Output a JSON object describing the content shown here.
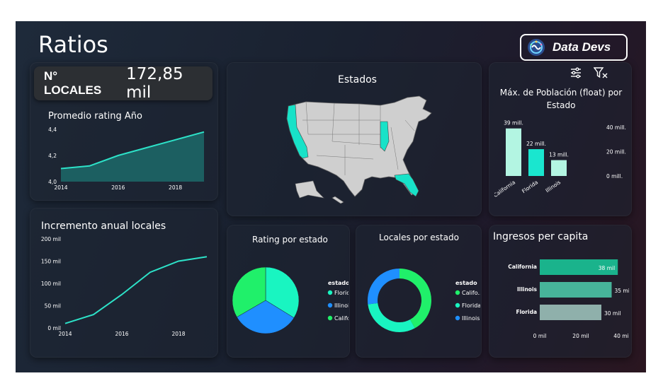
{
  "header": {
    "title": "Ratios",
    "brand": "Data Devs",
    "brand_logo_icon": "data-devs-logo-icon"
  },
  "kpi": {
    "label": "N° LOCALES",
    "value": "172,85 mil"
  },
  "toolbar": {
    "icons": [
      "filter-settings-icon",
      "clear-filter-icon"
    ]
  },
  "map": {
    "title": "Estados",
    "highlight_color": "#18e2c8",
    "base_color": "#cfcfcf",
    "highlighted_states": [
      "California",
      "Illinois",
      "Florida"
    ]
  },
  "chart_data": [
    {
      "id": "rating-year",
      "type": "area",
      "title": "Promedio rating Año",
      "x": [
        2014,
        2015,
        2016,
        2017,
        2018,
        2019
      ],
      "y": [
        4.1,
        4.12,
        4.2,
        4.26,
        4.32,
        4.38
      ],
      "xticks": [
        "2014",
        "2016",
        "2018"
      ],
      "yticks": [
        "4,0",
        "4,2",
        "4,4"
      ],
      "ylim": [
        4.0,
        4.4
      ],
      "color": "#2de2c8"
    },
    {
      "id": "growth-locales",
      "type": "line",
      "title": "Incremento anual locales",
      "x": [
        2014,
        2015,
        2016,
        2017,
        2018,
        2019
      ],
      "y": [
        10,
        30,
        75,
        125,
        150,
        160
      ],
      "xticks": [
        "2014",
        "2016",
        "2018"
      ],
      "yticks": [
        "0 mil",
        "50 mil",
        "100 mil",
        "150 mil",
        "200 mil"
      ],
      "ylim": [
        0,
        200
      ],
      "color": "#2de2c8"
    },
    {
      "id": "population",
      "type": "bar",
      "title": "Máx. de Población (float) por Estado",
      "categories": [
        "California",
        "Florida",
        "Illinois"
      ],
      "values": [
        39,
        22,
        13
      ],
      "data_labels": [
        "39 mill.",
        "22 mill.",
        "13 mill."
      ],
      "yticks": [
        "0 mill.",
        "20 mill.",
        "40 mill."
      ],
      "ylim": [
        0,
        40
      ],
      "colors": [
        "#b3f5e2",
        "#1ae6cf",
        "#b3f5e2"
      ]
    },
    {
      "id": "rating-state",
      "type": "pie",
      "title": "Rating por estado",
      "legend_title": "estado",
      "slices": [
        {
          "label": "Florida",
          "value": 33.8,
          "color": "#19f5c1"
        },
        {
          "label": "Illinois",
          "value": 32.8,
          "color": "#1f8fff"
        },
        {
          "label": "Califor...",
          "value": 33.4,
          "color": "#20f06a"
        }
      ]
    },
    {
      "id": "locales-state",
      "type": "pie",
      "title": "Locales por estado",
      "legend_title": "estado",
      "donut": true,
      "slices": [
        {
          "label": "Califo...",
          "value": 42,
          "color": "#20f06a"
        },
        {
          "label": "Florida",
          "value": 31,
          "color": "#19f5c1"
        },
        {
          "label": "Illinois",
          "value": 27,
          "color": "#1f8fff"
        }
      ]
    },
    {
      "id": "income",
      "type": "bar",
      "orientation": "horizontal",
      "title": "Ingresos per capita",
      "categories": [
        "California",
        "Illinois",
        "Florida"
      ],
      "values": [
        38,
        35,
        30
      ],
      "data_labels": [
        "38 mil",
        "35 mil",
        "30 mil"
      ],
      "xticks": [
        "0 mil",
        "20 mil",
        "40 mil"
      ],
      "xlim": [
        0,
        40
      ],
      "colors": [
        "#1ab38c",
        "#47b49a",
        "#8fb0ab"
      ]
    }
  ]
}
